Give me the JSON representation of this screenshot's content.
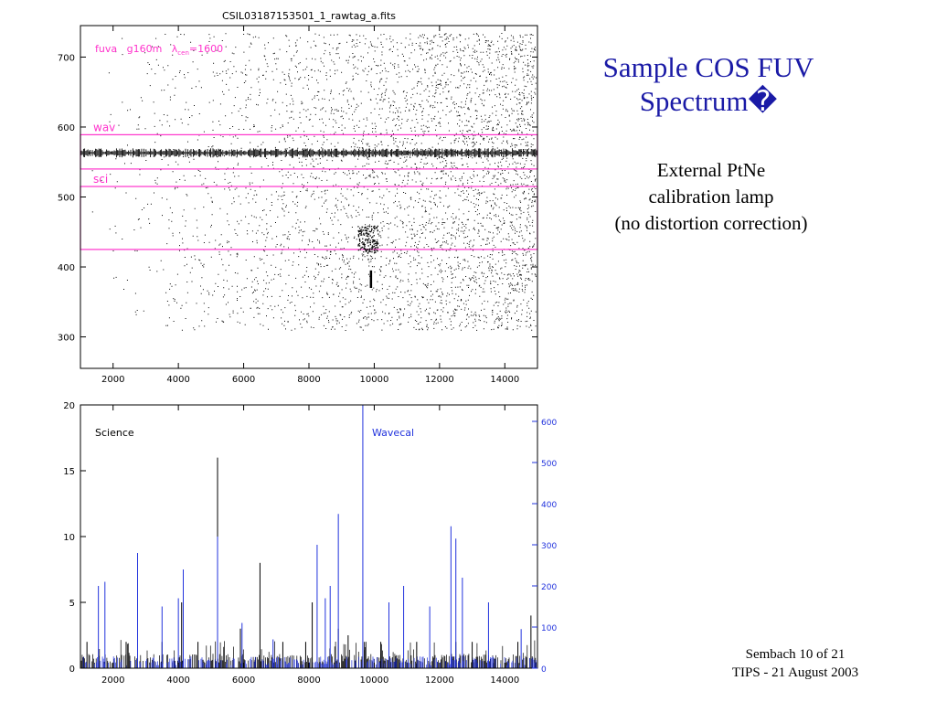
{
  "slide": {
    "title_line1": "Sample COS FUV",
    "title_line2": "Spectrum�",
    "subtitle_line1": "External PtNe",
    "subtitle_line2": "calibration lamp",
    "subtitle_line3": "(no distortion correction)",
    "footer_line1": "Sembach 10 of 21",
    "footer_line2": "TIPS - 21 August 2003"
  },
  "colors": {
    "accent_title": "#1a1aa6",
    "magenta": "#ff33cc",
    "wavecal_blue": "#2233dd",
    "science_black": "#000000"
  },
  "chart_data": [
    {
      "type": "scatter",
      "title": "CSIL03187153501_1_rawtag_a.fits",
      "annotation": {
        "prefix": "fuva   g160m   ",
        "lambda": "λ",
        "subscript": "cen",
        "suffix": "=1600"
      },
      "x_ticks": [
        "2000",
        "4000",
        "6000",
        "8000",
        "10000",
        "12000",
        "14000"
      ],
      "y_ticks": [
        "300",
        "400",
        "500",
        "600",
        "700"
      ],
      "xlim": [
        1000,
        15000
      ],
      "ylim": [
        255,
        745
      ],
      "grid": false,
      "regions": [
        {
          "label": "wav",
          "ymin": 540,
          "ymax": 589,
          "xmin": 1000,
          "xmax": 15000
        },
        {
          "label": "sci",
          "ymin": 425,
          "ymax": 515,
          "xmin": 1000,
          "xmax": 15000
        }
      ],
      "features": [
        {
          "name": "wavecal-stripe",
          "y_center": 563,
          "x_range": [
            1000,
            15000
          ]
        },
        {
          "name": "science-spot",
          "x": 9800,
          "y": 440
        },
        {
          "name": "vertical-streak",
          "x": 9900,
          "y_range": [
            370,
            395
          ]
        }
      ]
    },
    {
      "type": "line",
      "x_ticks": [
        "2000",
        "4000",
        "6000",
        "8000",
        "10000",
        "12000",
        "14000"
      ],
      "xlim": [
        1000,
        15000
      ],
      "left_axis": {
        "ylim": [
          0,
          20
        ],
        "ticks": [
          "0",
          "5",
          "10",
          "15",
          "20"
        ]
      },
      "right_axis": {
        "ylim": [
          0,
          640
        ],
        "ticks": [
          "0",
          "100",
          "200",
          "300",
          "400",
          "500",
          "600"
        ]
      },
      "grid": false,
      "series": [
        {
          "name": "Science",
          "axis": "left",
          "color": "#000000",
          "peaks": [
            {
              "x": 1200,
              "y": 2
            },
            {
              "x": 2400,
              "y": 2
            },
            {
              "x": 2750,
              "y": 5
            },
            {
              "x": 3500,
              "y": 2
            },
            {
              "x": 4100,
              "y": 5
            },
            {
              "x": 4600,
              "y": 2
            },
            {
              "x": 5200,
              "y": 16
            },
            {
              "x": 5900,
              "y": 3
            },
            {
              "x": 6500,
              "y": 8
            },
            {
              "x": 7200,
              "y": 2
            },
            {
              "x": 7900,
              "y": 2
            },
            {
              "x": 8100,
              "y": 5
            },
            {
              "x": 8900,
              "y": 3
            },
            {
              "x": 9200,
              "y": 2.5
            },
            {
              "x": 9700,
              "y": 2
            },
            {
              "x": 10200,
              "y": 2
            },
            {
              "x": 11300,
              "y": 2
            },
            {
              "x": 12500,
              "y": 2
            },
            {
              "x": 13000,
              "y": 2
            },
            {
              "x": 14400,
              "y": 2
            },
            {
              "x": 14800,
              "y": 4
            }
          ]
        },
        {
          "name": "Wavecal",
          "axis": "right",
          "color": "#2233dd",
          "peaks": [
            {
              "x": 1550,
              "y": 200
            },
            {
              "x": 1750,
              "y": 210
            },
            {
              "x": 2750,
              "y": 280
            },
            {
              "x": 3500,
              "y": 150
            },
            {
              "x": 4000,
              "y": 170
            },
            {
              "x": 4150,
              "y": 240
            },
            {
              "x": 5200,
              "y": 320
            },
            {
              "x": 5950,
              "y": 110
            },
            {
              "x": 6900,
              "y": 70
            },
            {
              "x": 8250,
              "y": 300
            },
            {
              "x": 8500,
              "y": 170
            },
            {
              "x": 8650,
              "y": 200
            },
            {
              "x": 8900,
              "y": 375
            },
            {
              "x": 9650,
              "y": 640
            },
            {
              "x": 10450,
              "y": 160
            },
            {
              "x": 10900,
              "y": 200
            },
            {
              "x": 11700,
              "y": 150
            },
            {
              "x": 12350,
              "y": 345
            },
            {
              "x": 12500,
              "y": 315
            },
            {
              "x": 12700,
              "y": 220
            },
            {
              "x": 13500,
              "y": 160
            },
            {
              "x": 14500,
              "y": 95
            }
          ]
        }
      ]
    }
  ]
}
